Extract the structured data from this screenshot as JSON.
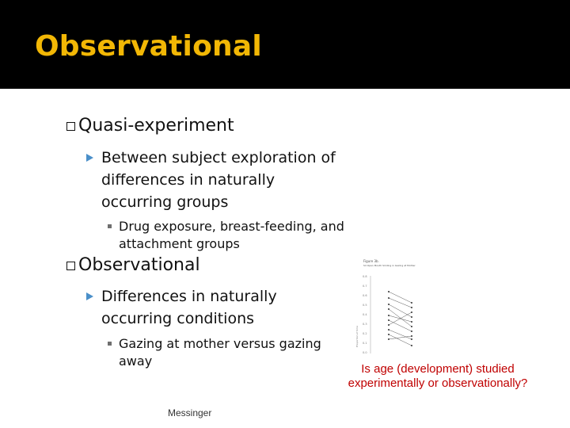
{
  "slide": {
    "title": "Observational",
    "items": [
      {
        "text": "Quasi-experiment"
      },
      {
        "text": "Between subject exploration of differences in naturally occurring groups"
      },
      {
        "text": "Drug exposure, breast-feeding, and attachment groups"
      },
      {
        "text": "Observational"
      },
      {
        "text": "Differences in naturally occurring conditions"
      },
      {
        "text": "Gazing at mother versus gazing away"
      }
    ],
    "footer": "Messinger",
    "question": "Is age (development) studied experimentally or observationally?"
  },
  "colors": {
    "title_bar": "#000000",
    "title_text": "#f2b705",
    "arrow": "#4a8fc9",
    "question": "#c00000"
  },
  "figure": {
    "title": "Figure 3b.",
    "subtitle": "Sd Open Mouth Smiling in Gazing at Mother",
    "y_ticks": [
      "0.8",
      "0.7",
      "0.6",
      "0.5",
      "0.4",
      "0.3",
      "0.2",
      "0.1",
      "0.0"
    ],
    "y_label": "Proportion of time"
  }
}
